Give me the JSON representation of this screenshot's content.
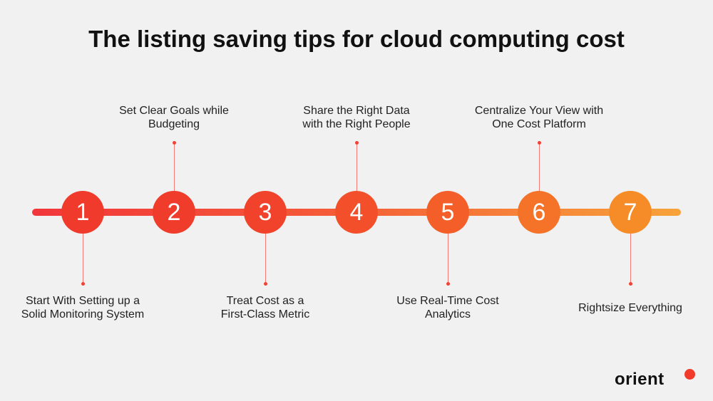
{
  "title": "The listing saving tips for cloud computing cost",
  "colors": {
    "line_start": "#f2363b",
    "line_end": "#f7a33a",
    "circle": "#ef3a2c",
    "background": "#f1f1f1"
  },
  "steps": [
    {
      "number": "1",
      "label_line1": "Start With Setting up a",
      "label_line2": "Solid Monitoring System",
      "position": "below"
    },
    {
      "number": "2",
      "label_line1": "Set Clear Goals while",
      "label_line2": "Budgeting",
      "position": "above"
    },
    {
      "number": "3",
      "label_line1": "Treat Cost as a",
      "label_line2": "First-Class Metric",
      "position": "below"
    },
    {
      "number": "4",
      "label_line1": "Share the Right Data",
      "label_line2": "with the Right People",
      "position": "above"
    },
    {
      "number": "5",
      "label_line1": "Use Real-Time Cost",
      "label_line2": "Analytics",
      "position": "below"
    },
    {
      "number": "6",
      "label_line1": "Centralize Your View with",
      "label_line2": "One Cost Platform",
      "position": "above"
    },
    {
      "number": "7",
      "label_line1": "Rightsize Everything",
      "label_line2": "",
      "position": "below"
    }
  ],
  "logo": "orient"
}
